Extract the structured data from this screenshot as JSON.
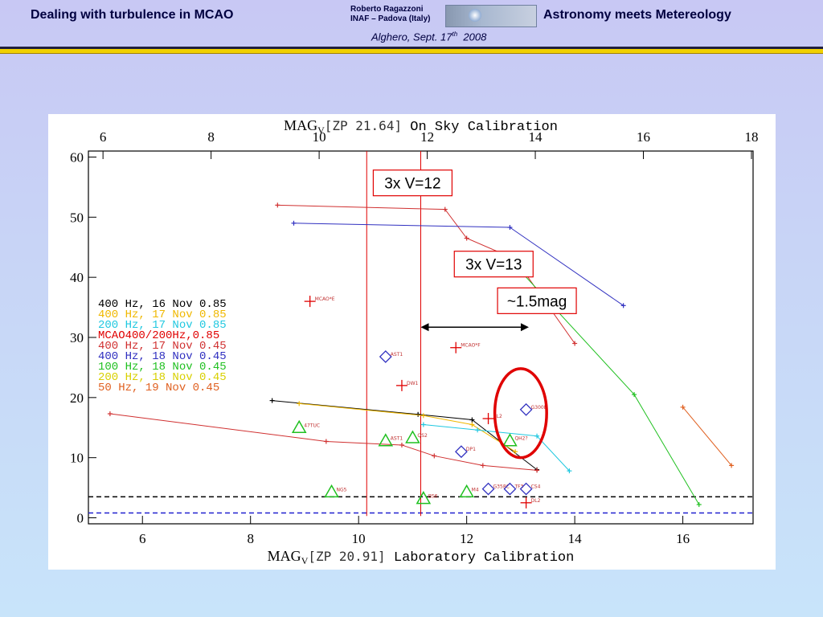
{
  "header": {
    "left_title": "Dealing with turbulence in MCAO",
    "right_title": "Astronomy meets Metereology",
    "author_name": "Roberto Ragazzoni",
    "author_affiliation": "INAF – Padova (Italy)",
    "date_prefix": "Alghero, Sept. 17",
    "date_sup": "th",
    "date_suffix": "2008"
  },
  "colors": {
    "background_top": "#c8c8f4",
    "rule_dark": "#202040",
    "rule_yellow": "#f0d000",
    "annotation_red": "#e00000"
  },
  "chart_data": {
    "type": "line",
    "title_top_prefix": "MAG",
    "title_top_sub": "V",
    "title_top_zp": "[ZP 21.64]",
    "title_top_suffix": "On Sky Calibration",
    "xlabel_prefix": "MAG",
    "xlabel_sub": "V",
    "xlabel_zp": "[ZP 20.91]",
    "xlabel_suffix": "Laboratory Calibration",
    "xlim": [
      5,
      17.3
    ],
    "ylim": [
      -1,
      61
    ],
    "x_ticks": [
      6,
      8,
      10,
      12,
      14,
      16
    ],
    "y_ticks": [
      0,
      10,
      20,
      30,
      40,
      50,
      60
    ],
    "x2_offset": 0.73,
    "x2_ticks": [
      6,
      8,
      10,
      12,
      14,
      16,
      18
    ],
    "legend": [
      {
        "text": "400 Hz, 16 Nov 0.85",
        "color": "#000000"
      },
      {
        "text": "400 Hz, 17 Nov 0.85",
        "color": "#f0b800"
      },
      {
        "text": "200 Hz, 17 Nov 0.85",
        "color": "#20c8e0"
      },
      {
        "text": "MCAO400/200Hz,0.85",
        "color": "#e00000"
      },
      {
        "text": "400 Hz, 17 Nov 0.45",
        "color": "#d03030"
      },
      {
        "text": "400 Hz, 18 Nov 0.45",
        "color": "#3030c0"
      },
      {
        "text": "100 Hz, 18 Nov 0.45",
        "color": "#20c020"
      },
      {
        "text": "200 Hz, 18 Nov 0.45",
        "color": "#d8d000"
      },
      {
        "text": "50 Hz, 19 Nov 0.45",
        "color": "#e06020"
      }
    ],
    "series": [
      {
        "color": "#000000",
        "x": [
          8.4,
          11.1,
          12.1,
          13.3
        ],
        "y": [
          19.5,
          17.2,
          16.3,
          8
        ]
      },
      {
        "color": "#f0b800",
        "x": [
          8.9,
          11.2,
          12.1,
          12.9
        ],
        "y": [
          19,
          17,
          15.5,
          11
        ]
      },
      {
        "color": "#20c8e0",
        "x": [
          11.2,
          12.2,
          13.3,
          13.9
        ],
        "y": [
          15.5,
          14.6,
          13.6,
          7.8
        ]
      },
      {
        "color": "#d03030",
        "x": [
          5.4,
          9.4,
          10.8,
          11.4,
          12.3,
          13.3
        ],
        "y": [
          17.3,
          12.7,
          12.1,
          10.3,
          8.7,
          7.9
        ]
      },
      {
        "color": "#d03030",
        "x": [
          8.5,
          11.6,
          12.0,
          12.9,
          14.0
        ],
        "y": [
          52,
          51.3,
          46.5,
          43,
          29
        ]
      },
      {
        "color": "#3030c0",
        "x": [
          8.8,
          12.8,
          14.9
        ],
        "y": [
          49,
          48.3,
          35.3
        ]
      },
      {
        "color": "#20c020",
        "x": [
          13.0,
          15.1,
          16.3
        ],
        "y": [
          41,
          20.5,
          2.2
        ]
      },
      {
        "color": "#e06020",
        "x": [
          16.0,
          16.9
        ],
        "y": [
          18.4,
          8.7
        ]
      }
    ],
    "labeled_points": [
      {
        "x": 9.1,
        "y": 36,
        "label": "MCAO*E",
        "marker": "cross",
        "color": "#e00000"
      },
      {
        "x": 11.8,
        "y": 28.3,
        "label": "MCAO*F",
        "marker": "cross",
        "color": "#e00000"
      },
      {
        "x": 10.8,
        "y": 22,
        "label": "DW1",
        "marker": "cross",
        "color": "#e00000"
      },
      {
        "x": 12.4,
        "y": 16.5,
        "label": "BL2",
        "marker": "cross",
        "color": "#e00000"
      },
      {
        "x": 13.1,
        "y": 2.5,
        "label": "DL2",
        "marker": "cross",
        "color": "#e00000"
      },
      {
        "x": 10.5,
        "y": 26.8,
        "label": "AST1",
        "marker": "diamond",
        "color": "#3030c0"
      },
      {
        "x": 13.1,
        "y": 18,
        "label": "G300E",
        "marker": "diamond",
        "color": "#3030c0"
      },
      {
        "x": 11.9,
        "y": 11,
        "label": "DP1",
        "marker": "diamond",
        "color": "#3030c0"
      },
      {
        "x": 12.4,
        "y": 4.8,
        "label": "G358C",
        "marker": "diamond",
        "color": "#3030c0"
      },
      {
        "x": 12.8,
        "y": 4.8,
        "label": "TF3",
        "marker": "diamond",
        "color": "#3030c0"
      },
      {
        "x": 13.1,
        "y": 4.8,
        "label": "CS4",
        "marker": "diamond",
        "color": "#3030c0"
      },
      {
        "x": 8.9,
        "y": 15,
        "label": "47TUC",
        "marker": "triangle",
        "color": "#20c020"
      },
      {
        "x": 10.5,
        "y": 12.8,
        "label": "AST1",
        "marker": "triangle",
        "color": "#20c020"
      },
      {
        "x": 11.0,
        "y": 13.3,
        "label": "QS2",
        "marker": "triangle",
        "color": "#20c020"
      },
      {
        "x": 12.8,
        "y": 12.8,
        "label": "QH2?",
        "marker": "triangle",
        "color": "#20c020"
      },
      {
        "x": 9.5,
        "y": 4.3,
        "label": "NG5",
        "marker": "triangle",
        "color": "#20c020"
      },
      {
        "x": 11.2,
        "y": 3.2,
        "label": "BS6",
        "marker": "triangle",
        "color": "#20c020"
      },
      {
        "x": 12.0,
        "y": 4.3,
        "label": "M4",
        "marker": "triangle",
        "color": "#20c020"
      }
    ],
    "vlines": [
      {
        "x": 10.15,
        "color": "#e00000"
      },
      {
        "x": 11.15,
        "color": "#e00000"
      }
    ],
    "hlines": [
      {
        "y": 3.5,
        "color": "#000000",
        "style": "dashed"
      },
      {
        "y": 0.8,
        "color": "#2020d0",
        "style": "dashed"
      }
    ],
    "annotations": [
      {
        "text": "3x V=12",
        "x": 11.0,
        "y": 55.7
      },
      {
        "text": "3x V=13",
        "x": 12.5,
        "y": 42.2
      },
      {
        "text": "~1.5mag",
        "x": 13.3,
        "y": 36.1
      }
    ],
    "double_arrow": {
      "x1": 11.15,
      "x2": 13.15,
      "y": 31.7
    },
    "ellipse": {
      "cx": 13.0,
      "cy": 17.4,
      "rx": 0.48,
      "ry": 7.4,
      "color": "#e00000"
    }
  }
}
